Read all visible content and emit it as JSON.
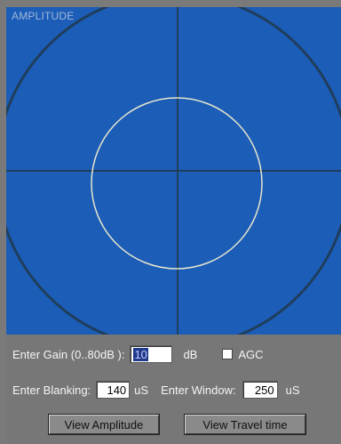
{
  "plot": {
    "title": "AMPLITUDE",
    "background_color": "#1c5db8",
    "crosshair_color": "#1f3e5c",
    "outer_ring_color": "#1f3e5c",
    "inner_ring_color": "#e6e6cc"
  },
  "controls": {
    "gain_label": "Enter Gain (0..80dB ):",
    "gain_value": "10",
    "gain_unit": "dB",
    "agc_label": "AGC",
    "agc_checked": false,
    "blanking_label": "Enter Blanking:",
    "blanking_value": "140",
    "blanking_unit": "uS",
    "window_label": "Enter Window:",
    "window_value": "250",
    "window_unit": "uS"
  },
  "buttons": {
    "view_amplitude": "View Amplitude",
    "view_travel_time": "View Travel time"
  }
}
